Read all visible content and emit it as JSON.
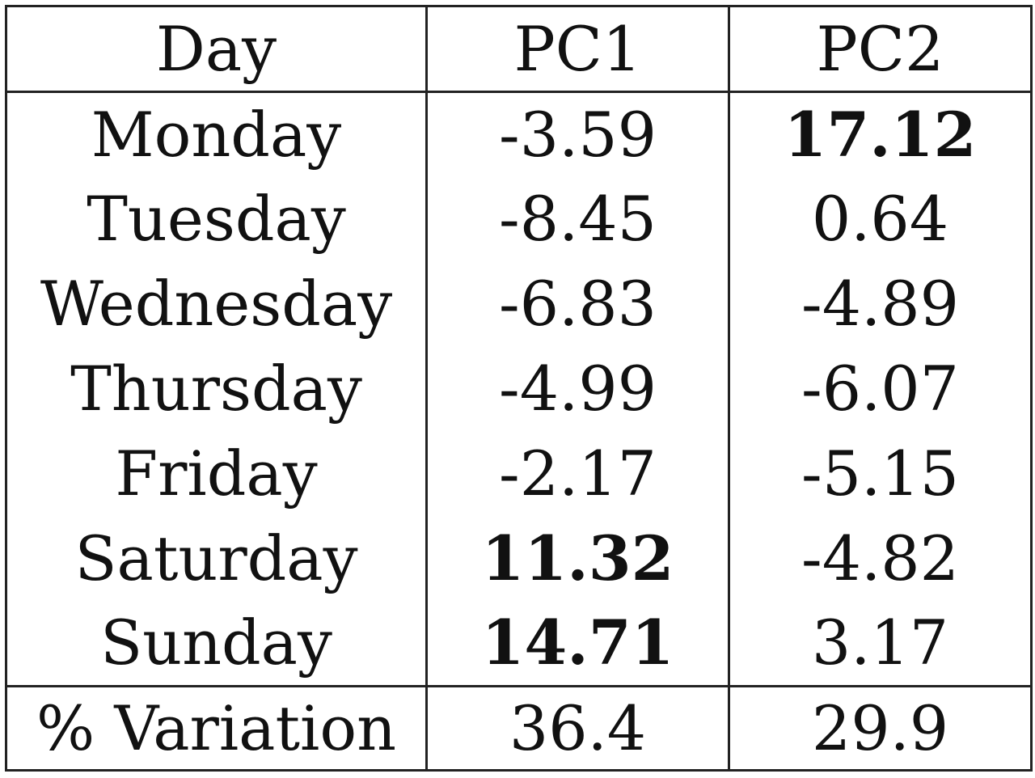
{
  "table": {
    "headers": [
      "Day",
      "PC1",
      "PC2"
    ],
    "rows": [
      {
        "day": "Monday",
        "pc1": "-3.59",
        "pc2": "17.12",
        "pc1_bold": false,
        "pc2_bold": true
      },
      {
        "day": "Tuesday",
        "pc1": "-8.45",
        "pc2": "0.64",
        "pc1_bold": false,
        "pc2_bold": false
      },
      {
        "day": "Wednesday",
        "pc1": "-6.83",
        "pc2": "-4.89",
        "pc1_bold": false,
        "pc2_bold": false
      },
      {
        "day": "Thursday",
        "pc1": "-4.99",
        "pc2": "-6.07",
        "pc1_bold": false,
        "pc2_bold": false
      },
      {
        "day": "Friday",
        "pc1": "-2.17",
        "pc2": "-5.15",
        "pc1_bold": false,
        "pc2_bold": false
      },
      {
        "day": "Saturday",
        "pc1": "11.32",
        "pc2": "-4.82",
        "pc1_bold": true,
        "pc2_bold": false
      },
      {
        "day": "Sunday",
        "pc1": "14.71",
        "pc2": "3.17",
        "pc1_bold": true,
        "pc2_bold": false
      }
    ],
    "footer": {
      "label": "% Variation",
      "pc1": "36.4",
      "pc2": "29.9"
    }
  }
}
